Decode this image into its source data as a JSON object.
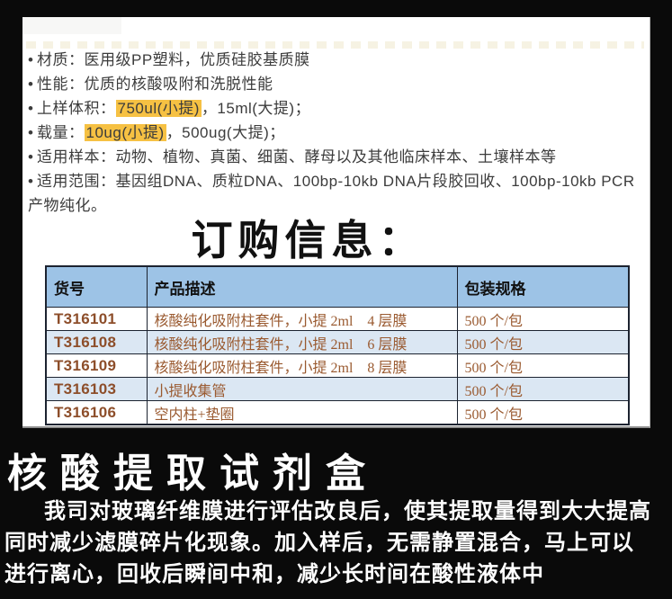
{
  "colors": {
    "background": "#0a0a0a",
    "page_bg": "#ffffff",
    "highlight": "#f6c143",
    "table_header_bg": "#9dc3e6",
    "table_alt_row_bg": "#dbe7f3",
    "table_text_brown": "#9a5a30",
    "footer_text": "#ffffff"
  },
  "specs": {
    "bullet": "•",
    "items": [
      {
        "text": "材质：医用级PP塑料，优质硅胶基质膜"
      },
      {
        "text": "性能：优质的核酸吸附和洗脱性能"
      },
      {
        "prefix": "上样体积：",
        "highlight": "750ul(小提)",
        "suffix": "，15ml(大提)；"
      },
      {
        "prefix": "载量：",
        "highlight": "10ug(小提)",
        "suffix": "，500ug(大提)；"
      },
      {
        "text": "适用样本：动物、植物、真菌、细菌、酵母以及其他临床样本、土壤样本等"
      },
      {
        "text": "适用范围：基因组DNA、质粒DNA、100bp-10kb DNA片段胶回收、100bp-10kb PCR产物纯化。"
      }
    ]
  },
  "order": {
    "title": "订购信息："
  },
  "table": {
    "headers": [
      "货号",
      "产品描述",
      "包装规格"
    ],
    "rows": [
      {
        "code": "T316101",
        "description": "核酸纯化吸附柱套件，小提 2ml    4 层膜",
        "packing": "500 个/包"
      },
      {
        "code": "T316108",
        "description": "核酸纯化吸附柱套件，小提 2ml    6 层膜",
        "packing": "500 个/包"
      },
      {
        "code": "T316109",
        "description": "核酸纯化吸附柱套件，小提 2ml    8 层膜",
        "packing": "500 个/包"
      },
      {
        "code": "T316103",
        "description": "小提收集管",
        "packing": "500 个/包"
      },
      {
        "code": "T316106",
        "description": "空内柱+垫圈",
        "packing": "500 个/包"
      }
    ]
  },
  "footer": {
    "title": "核酸提取试剂盒",
    "lines": [
      "我司对玻璃纤维膜进行评估改良后，使其提取量得到大大提高",
      "同时减少滤膜碎片化现象。加入样后，无需静置混合，马上可以",
      "进行离心，回收后瞬间中和，减少长时间在酸性液体中"
    ]
  }
}
